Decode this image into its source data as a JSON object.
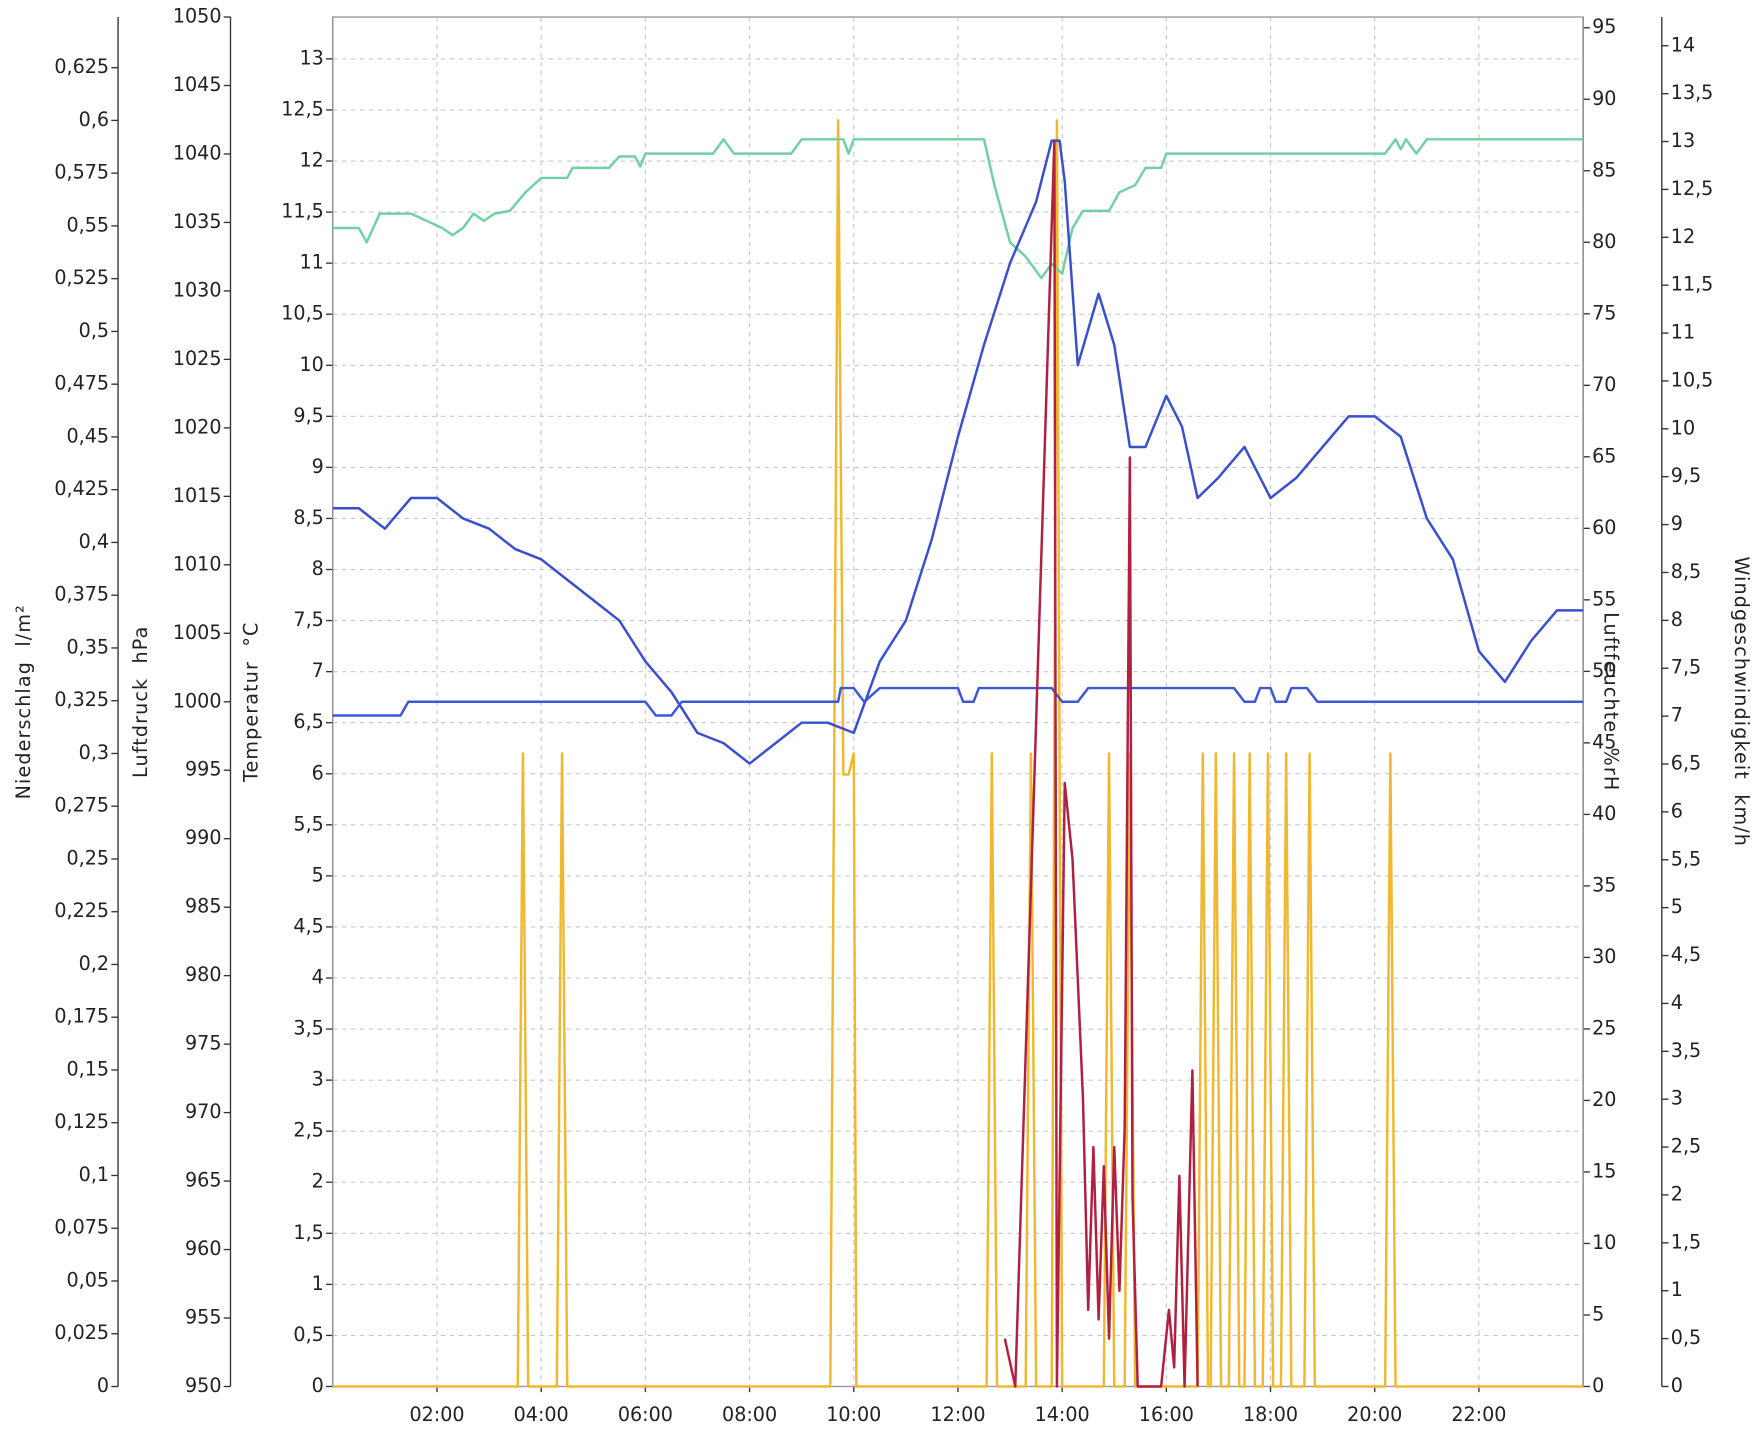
{
  "chart_data": {
    "type": "line",
    "xlim": [
      0,
      24
    ],
    "xticks": [
      {
        "value": 2,
        "label": "02:00"
      },
      {
        "value": 4,
        "label": "04:00"
      },
      {
        "value": 6,
        "label": "06:00"
      },
      {
        "value": 8,
        "label": "08:00"
      },
      {
        "value": 10,
        "label": "10:00"
      },
      {
        "value": 12,
        "label": "12:00"
      },
      {
        "value": 14,
        "label": "14:00"
      },
      {
        "value": 16,
        "label": "16:00"
      },
      {
        "value": 18,
        "label": "18:00"
      },
      {
        "value": 20,
        "label": "20:00"
      },
      {
        "value": 22,
        "label": "22:00"
      }
    ],
    "grid": true,
    "y_axes": [
      {
        "label": "Niederschlag  l/m²",
        "ylim": [
          0,
          0.649
        ],
        "yticks": [
          0,
          {
            "value": 0.025,
            "label": "0,025"
          },
          {
            "value": 0.05,
            "label": "0,05"
          },
          {
            "value": 0.075,
            "label": "0,075"
          },
          {
            "value": 0.1,
            "label": "0,1"
          },
          {
            "value": 0.125,
            "label": "0,125"
          },
          {
            "value": 0.15,
            "label": "0,15"
          },
          {
            "value": 0.175,
            "label": "0,175"
          },
          {
            "value": 0.2,
            "label": "0,2"
          },
          {
            "value": 0.225,
            "label": "0,225"
          },
          {
            "value": 0.25,
            "label": "0,25"
          },
          {
            "value": 0.275,
            "label": "0,275"
          },
          {
            "value": 0.3,
            "label": "0,3"
          },
          {
            "value": 0.325,
            "label": "0,325"
          },
          {
            "value": 0.35,
            "label": "0,35"
          },
          {
            "value": 0.375,
            "label": "0,375"
          },
          {
            "value": 0.4,
            "label": "0,4"
          },
          {
            "value": 0.425,
            "label": "0,425"
          },
          {
            "value": 0.45,
            "label": "0,45"
          },
          {
            "value": 0.475,
            "label": "0,475"
          },
          {
            "value": 0.5,
            "label": "0,5"
          },
          {
            "value": 0.525,
            "label": "0,525"
          },
          {
            "value": 0.55,
            "label": "0,55"
          },
          {
            "value": 0.575,
            "label": "0,575"
          },
          {
            "value": 0.6,
            "label": "0,6"
          },
          {
            "value": 0.625,
            "label": "0,625"
          }
        ]
      },
      {
        "label": "Luftdruck  hPa",
        "ylim": [
          950,
          1050
        ],
        "yticks": [
          950,
          955,
          960,
          965,
          970,
          975,
          980,
          985,
          990,
          995,
          1000,
          1005,
          1010,
          1015,
          1020,
          1025,
          1030,
          1035,
          1040,
          1045,
          1050
        ]
      },
      {
        "label": "Temperatur  °C",
        "ylim": [
          0,
          13.41
        ],
        "grid": true,
        "yticks": [
          0,
          {
            "value": 0.5,
            "label": "0,5"
          },
          1,
          {
            "value": 1.5,
            "label": "1,5"
          },
          2,
          {
            "value": 2.5,
            "label": "2,5"
          },
          3,
          {
            "value": 3.5,
            "label": "3,5"
          },
          4,
          {
            "value": 4.5,
            "label": "4,5"
          },
          5,
          {
            "value": 5.5,
            "label": "5,5"
          },
          6,
          {
            "value": 6.5,
            "label": "6,5"
          },
          7,
          {
            "value": 7.5,
            "label": "7,5"
          },
          8,
          {
            "value": 8.5,
            "label": "8,5"
          },
          9,
          {
            "value": 9.5,
            "label": "9,5"
          },
          10,
          {
            "value": 10.5,
            "label": "10,5"
          },
          11,
          {
            "value": 11.5,
            "label": "11,5"
          },
          12,
          {
            "value": 12.5,
            "label": "12,5"
          },
          13
        ]
      },
      {
        "label": "Luftfeuchte  %rH",
        "ylim": [
          0,
          95.75
        ],
        "yticks": [
          0,
          5,
          10,
          15,
          20,
          25,
          30,
          35,
          40,
          45,
          50,
          55,
          60,
          65,
          70,
          75,
          80,
          85,
          90,
          95
        ]
      },
      {
        "label": "Windgeschwindigkeit  km/h",
        "ylim": [
          0,
          14.3
        ],
        "yticks": [
          0,
          {
            "value": 0.5,
            "label": "0,5"
          },
          1,
          {
            "value": 1.5,
            "label": "1,5"
          },
          2,
          {
            "value": 2.5,
            "label": "2,5"
          },
          3,
          {
            "value": 3.5,
            "label": "3,5"
          },
          4,
          {
            "value": 4.5,
            "label": "4,5"
          },
          5,
          {
            "value": 5.5,
            "label": "5,5"
          },
          6,
          {
            "value": 6.5,
            "label": "6,5"
          },
          7,
          {
            "value": 7.5,
            "label": "7,5"
          },
          8,
          {
            "value": 8.5,
            "label": "8,5"
          },
          9,
          {
            "value": 9.5,
            "label": "9,5"
          },
          10,
          {
            "value": 10.5,
            "label": "10,5"
          },
          11,
          {
            "value": 11.5,
            "label": "11,5"
          },
          12,
          {
            "value": 12.5,
            "label": "12,5"
          },
          13,
          {
            "value": 13.5,
            "label": "13,5"
          },
          14
        ]
      }
    ],
    "series": [
      {
        "axis": 0,
        "color": "#f0b830",
        "x": [
          0,
          3.55,
          3.65,
          3.75,
          4.3,
          4.4,
          4.5,
          9.55,
          9.7,
          9.8,
          9.9,
          10,
          10.05,
          12.55,
          12.65,
          12.75,
          13.3,
          13.4,
          13.5,
          13.8,
          13.9,
          14,
          14.8,
          14.9,
          15,
          15.2,
          15.3,
          15.4,
          16.6,
          16.7,
          16.8,
          16.85,
          16.95,
          17.05,
          17.2,
          17.3,
          17.4,
          17.5,
          17.6,
          17.7,
          17.85,
          17.95,
          18.05,
          18.2,
          18.3,
          18.4,
          18.65,
          18.75,
          18.85,
          20.2,
          20.3,
          20.4,
          24
        ],
        "values": [
          0,
          0,
          0.3,
          0,
          0,
          0.3,
          0,
          0,
          0.6,
          0.29,
          0.29,
          0.3,
          0,
          0,
          0.3,
          0,
          0,
          0.3,
          0,
          0,
          0.6,
          0,
          0,
          0.3,
          0,
          0,
          0.3,
          0,
          0,
          0.3,
          0,
          0,
          0.3,
          0,
          0,
          0.3,
          0,
          0,
          0.3,
          0,
          0,
          0.3,
          0,
          0,
          0.3,
          0,
          0,
          0.3,
          0,
          0,
          0.3,
          0,
          0
        ]
      },
      {
        "axis": 1,
        "color": "#3d58d6",
        "x": [
          0,
          1.3,
          1.45,
          6,
          6.2,
          6.5,
          6.7,
          9.7,
          9.75,
          10,
          10.2,
          10.5,
          12,
          12.1,
          12.3,
          12.4,
          13.8,
          14,
          14.3,
          14.5,
          17.3,
          17.5,
          17.7,
          17.8,
          18,
          18.1,
          18.3,
          18.4,
          18.7,
          18.9,
          24
        ],
        "values": [
          999,
          999,
          1000,
          1000,
          999,
          999,
          1000,
          1000,
          1001,
          1001,
          1000,
          1001,
          1001,
          1000,
          1000,
          1001,
          1001,
          1000,
          1000,
          1001,
          1001,
          1000,
          1000,
          1001,
          1001,
          1000,
          1000,
          1001,
          1001,
          1000,
          1000
        ]
      },
      {
        "axis": 3,
        "color": "#72d0a4",
        "x": [
          0,
          0.5,
          0.65,
          0.9,
          1.5,
          2.1,
          2.3,
          2.5,
          2.7,
          2.9,
          3.1,
          3.4,
          3.7,
          4,
          4.5,
          4.6,
          5.3,
          5.5,
          5.8,
          5.9,
          6,
          7.3,
          7.5,
          7.7,
          8.8,
          9,
          9.8,
          9.9,
          10,
          12.5,
          12.7,
          13,
          13.3,
          13.6,
          13.8,
          14,
          14.2,
          14.4,
          14.9,
          15.1,
          15.4,
          15.6,
          15.9,
          16,
          20.2,
          20.4,
          20.5,
          20.6,
          20.8,
          21,
          24
        ],
        "values": [
          81,
          81,
          80,
          82,
          82,
          81,
          80.5,
          81,
          82,
          81.5,
          82,
          82.2,
          83.5,
          84.5,
          84.5,
          85.2,
          85.2,
          86,
          86,
          85.3,
          86.2,
          86.2,
          87.2,
          86.2,
          86.2,
          87.2,
          87.2,
          86.2,
          87.2,
          87.2,
          84,
          80,
          79,
          77.5,
          78.5,
          77.8,
          81,
          82.2,
          82.2,
          83.5,
          84,
          85.2,
          85.2,
          86.2,
          86.2,
          87.2,
          86.5,
          87.2,
          86.2,
          87.2,
          87.2
        ]
      },
      {
        "axis": 2,
        "color": "#3a4fcc",
        "x": [
          0,
          0.5,
          1,
          1.5,
          2,
          2.5,
          3,
          3.5,
          4,
          4.5,
          5,
          5.5,
          6,
          6.5,
          7,
          7.5,
          8,
          8.5,
          9,
          9.5,
          10,
          10.5,
          11,
          11.5,
          12,
          12.5,
          13,
          13.5,
          13.8,
          13.95,
          14.05,
          14.3,
          14.7,
          15,
          15.3,
          15.6,
          16,
          16.3,
          16.6,
          17,
          17.5,
          18,
          18.5,
          19,
          19.5,
          20,
          20.5,
          21,
          21.5,
          22,
          22.5,
          23,
          23.5,
          24
        ],
        "values": [
          8.6,
          8.6,
          8.4,
          8.7,
          8.7,
          8.5,
          8.4,
          8.2,
          8.1,
          7.9,
          7.7,
          7.5,
          7.1,
          6.8,
          6.4,
          6.3,
          6.1,
          6.3,
          6.5,
          6.5,
          6.4,
          7.1,
          7.5,
          8.3,
          9.3,
          10.2,
          11,
          11.6,
          12.2,
          12.2,
          11.8,
          10,
          10.7,
          10.2,
          9.2,
          9.2,
          9.7,
          9.4,
          8.7,
          8.9,
          9.2,
          8.7,
          8.9,
          9.2,
          9.5,
          9.5,
          9.3,
          8.5,
          8.1,
          7.2,
          6.9,
          7.3,
          7.6,
          7.6
        ]
      },
      {
        "axis": 4,
        "color": "#b02040",
        "x": [
          12.9,
          13.1,
          13.85,
          13.9,
          14.05,
          14.2,
          14.4,
          14.5,
          14.6,
          14.7,
          14.8,
          14.9,
          15,
          15.1,
          15.2,
          15.3,
          15.35,
          15.45,
          15.9,
          16.05,
          16.15,
          16.25,
          16.35,
          16.5,
          16.6
        ],
        "values": [
          0.5,
          0,
          13,
          0,
          6.3,
          5.5,
          3,
          0.8,
          2.5,
          0.7,
          2.3,
          0.5,
          2.5,
          1,
          2.7,
          9.7,
          2,
          0,
          0,
          0.8,
          0.2,
          2.2,
          0,
          3.3,
          0
        ]
      }
    ]
  }
}
